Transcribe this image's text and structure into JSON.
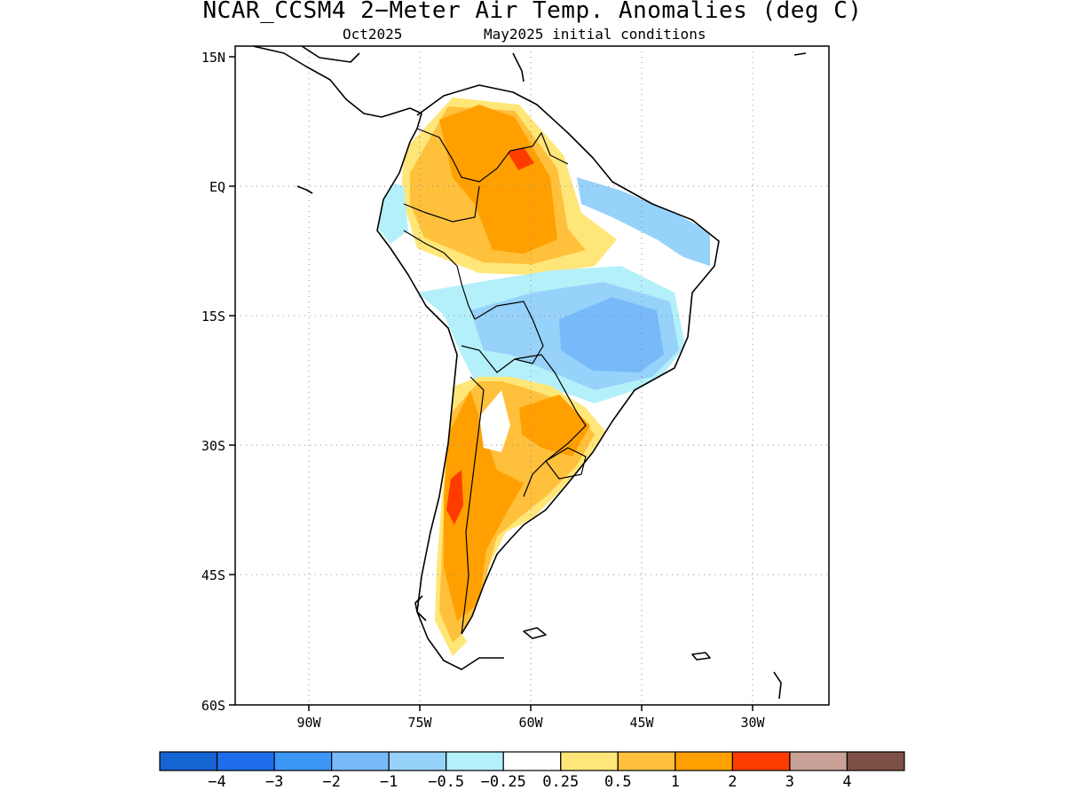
{
  "title": "NCAR_CCSM4 2−Meter Air Temp. Anomalies (deg C)",
  "subtitle_left": "Oct2025",
  "subtitle_right": "May2025 initial conditions",
  "lat_ticks": [
    "15N",
    "EQ",
    "15S",
    "30S",
    "45S",
    "60S"
  ],
  "lon_ticks": [
    "90W",
    "75W",
    "60W",
    "45W",
    "30W"
  ],
  "colorbar": {
    "colors": [
      "#1464d2",
      "#1e6eeb",
      "#3c96f5",
      "#78b9fa",
      "#96d2fa",
      "#b4f0fa",
      "#ffffff",
      "#ffe678",
      "#ffc03c",
      "#ffa000",
      "#ff3c00",
      "#c8a096",
      "#7d5046"
    ],
    "labels": [
      "−4",
      "−3",
      "−2",
      "−1",
      "−0.5",
      "−0.25",
      "0.25",
      "0.5",
      "1",
      "2",
      "3",
      "4"
    ]
  }
}
